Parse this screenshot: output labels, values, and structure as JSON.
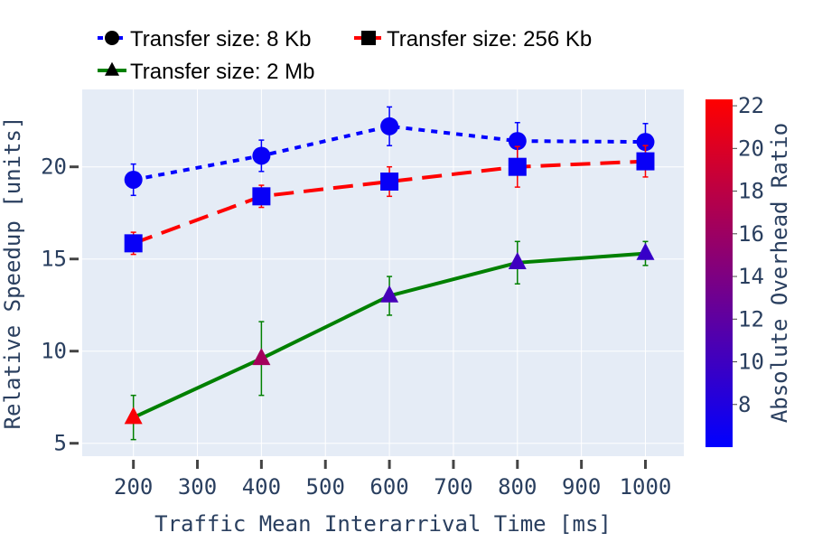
{
  "chart_data": {
    "type": "line",
    "xlabel": "Traffic Mean Interarrival Time [ms]",
    "ylabel": "Relative Speedup [units]",
    "xlim": [
      120,
      1060
    ],
    "ylim": [
      4.3,
      24.2
    ],
    "xticks": [
      200,
      300,
      400,
      500,
      600,
      700,
      800,
      900,
      1000
    ],
    "yticks": [
      5,
      10,
      15,
      20
    ],
    "grid": true,
    "legend_position": "top",
    "colorbar": {
      "title": "Absolute Overhead Ratio",
      "range": [
        6,
        22.3
      ],
      "ticks": [
        8,
        10,
        12,
        14,
        16,
        18,
        20,
        22
      ],
      "colors": [
        "#0000ff",
        "#ff0000"
      ]
    },
    "series": [
      {
        "name": "Transfer size: 8 Kb",
        "line_color": "#0000ff",
        "dash": "dot",
        "marker": "circle",
        "x": [
          200,
          400,
          600,
          800,
          1000
        ],
        "y": [
          19.3,
          20.6,
          22.2,
          21.4,
          21.35
        ],
        "error": [
          0.85,
          0.85,
          1.05,
          1.0,
          1.0
        ],
        "color_value": [
          6.5,
          6.5,
          6.5,
          6.5,
          6.5
        ]
      },
      {
        "name": "Transfer size: 256 Kb",
        "line_color": "#ff0000",
        "dash": "dash",
        "marker": "square",
        "x": [
          200,
          400,
          600,
          800,
          1000
        ],
        "y": [
          15.85,
          18.4,
          19.2,
          20.0,
          20.3
        ],
        "error": [
          0.6,
          0.6,
          0.8,
          1.1,
          0.85
        ],
        "color_value": [
          6.5,
          6.5,
          6.5,
          6.5,
          6.5
        ]
      },
      {
        "name": "Transfer size: 2 Mb",
        "line_color": "#008000",
        "dash": "solid",
        "marker": "triangle",
        "x": [
          200,
          400,
          600,
          800,
          1000
        ],
        "y": [
          6.4,
          9.6,
          13.0,
          14.8,
          15.3
        ],
        "error": [
          1.2,
          2.0,
          1.05,
          1.15,
          0.65
        ],
        "color_value": [
          22.0,
          16.5,
          10.5,
          10.0,
          9.5
        ]
      }
    ]
  }
}
